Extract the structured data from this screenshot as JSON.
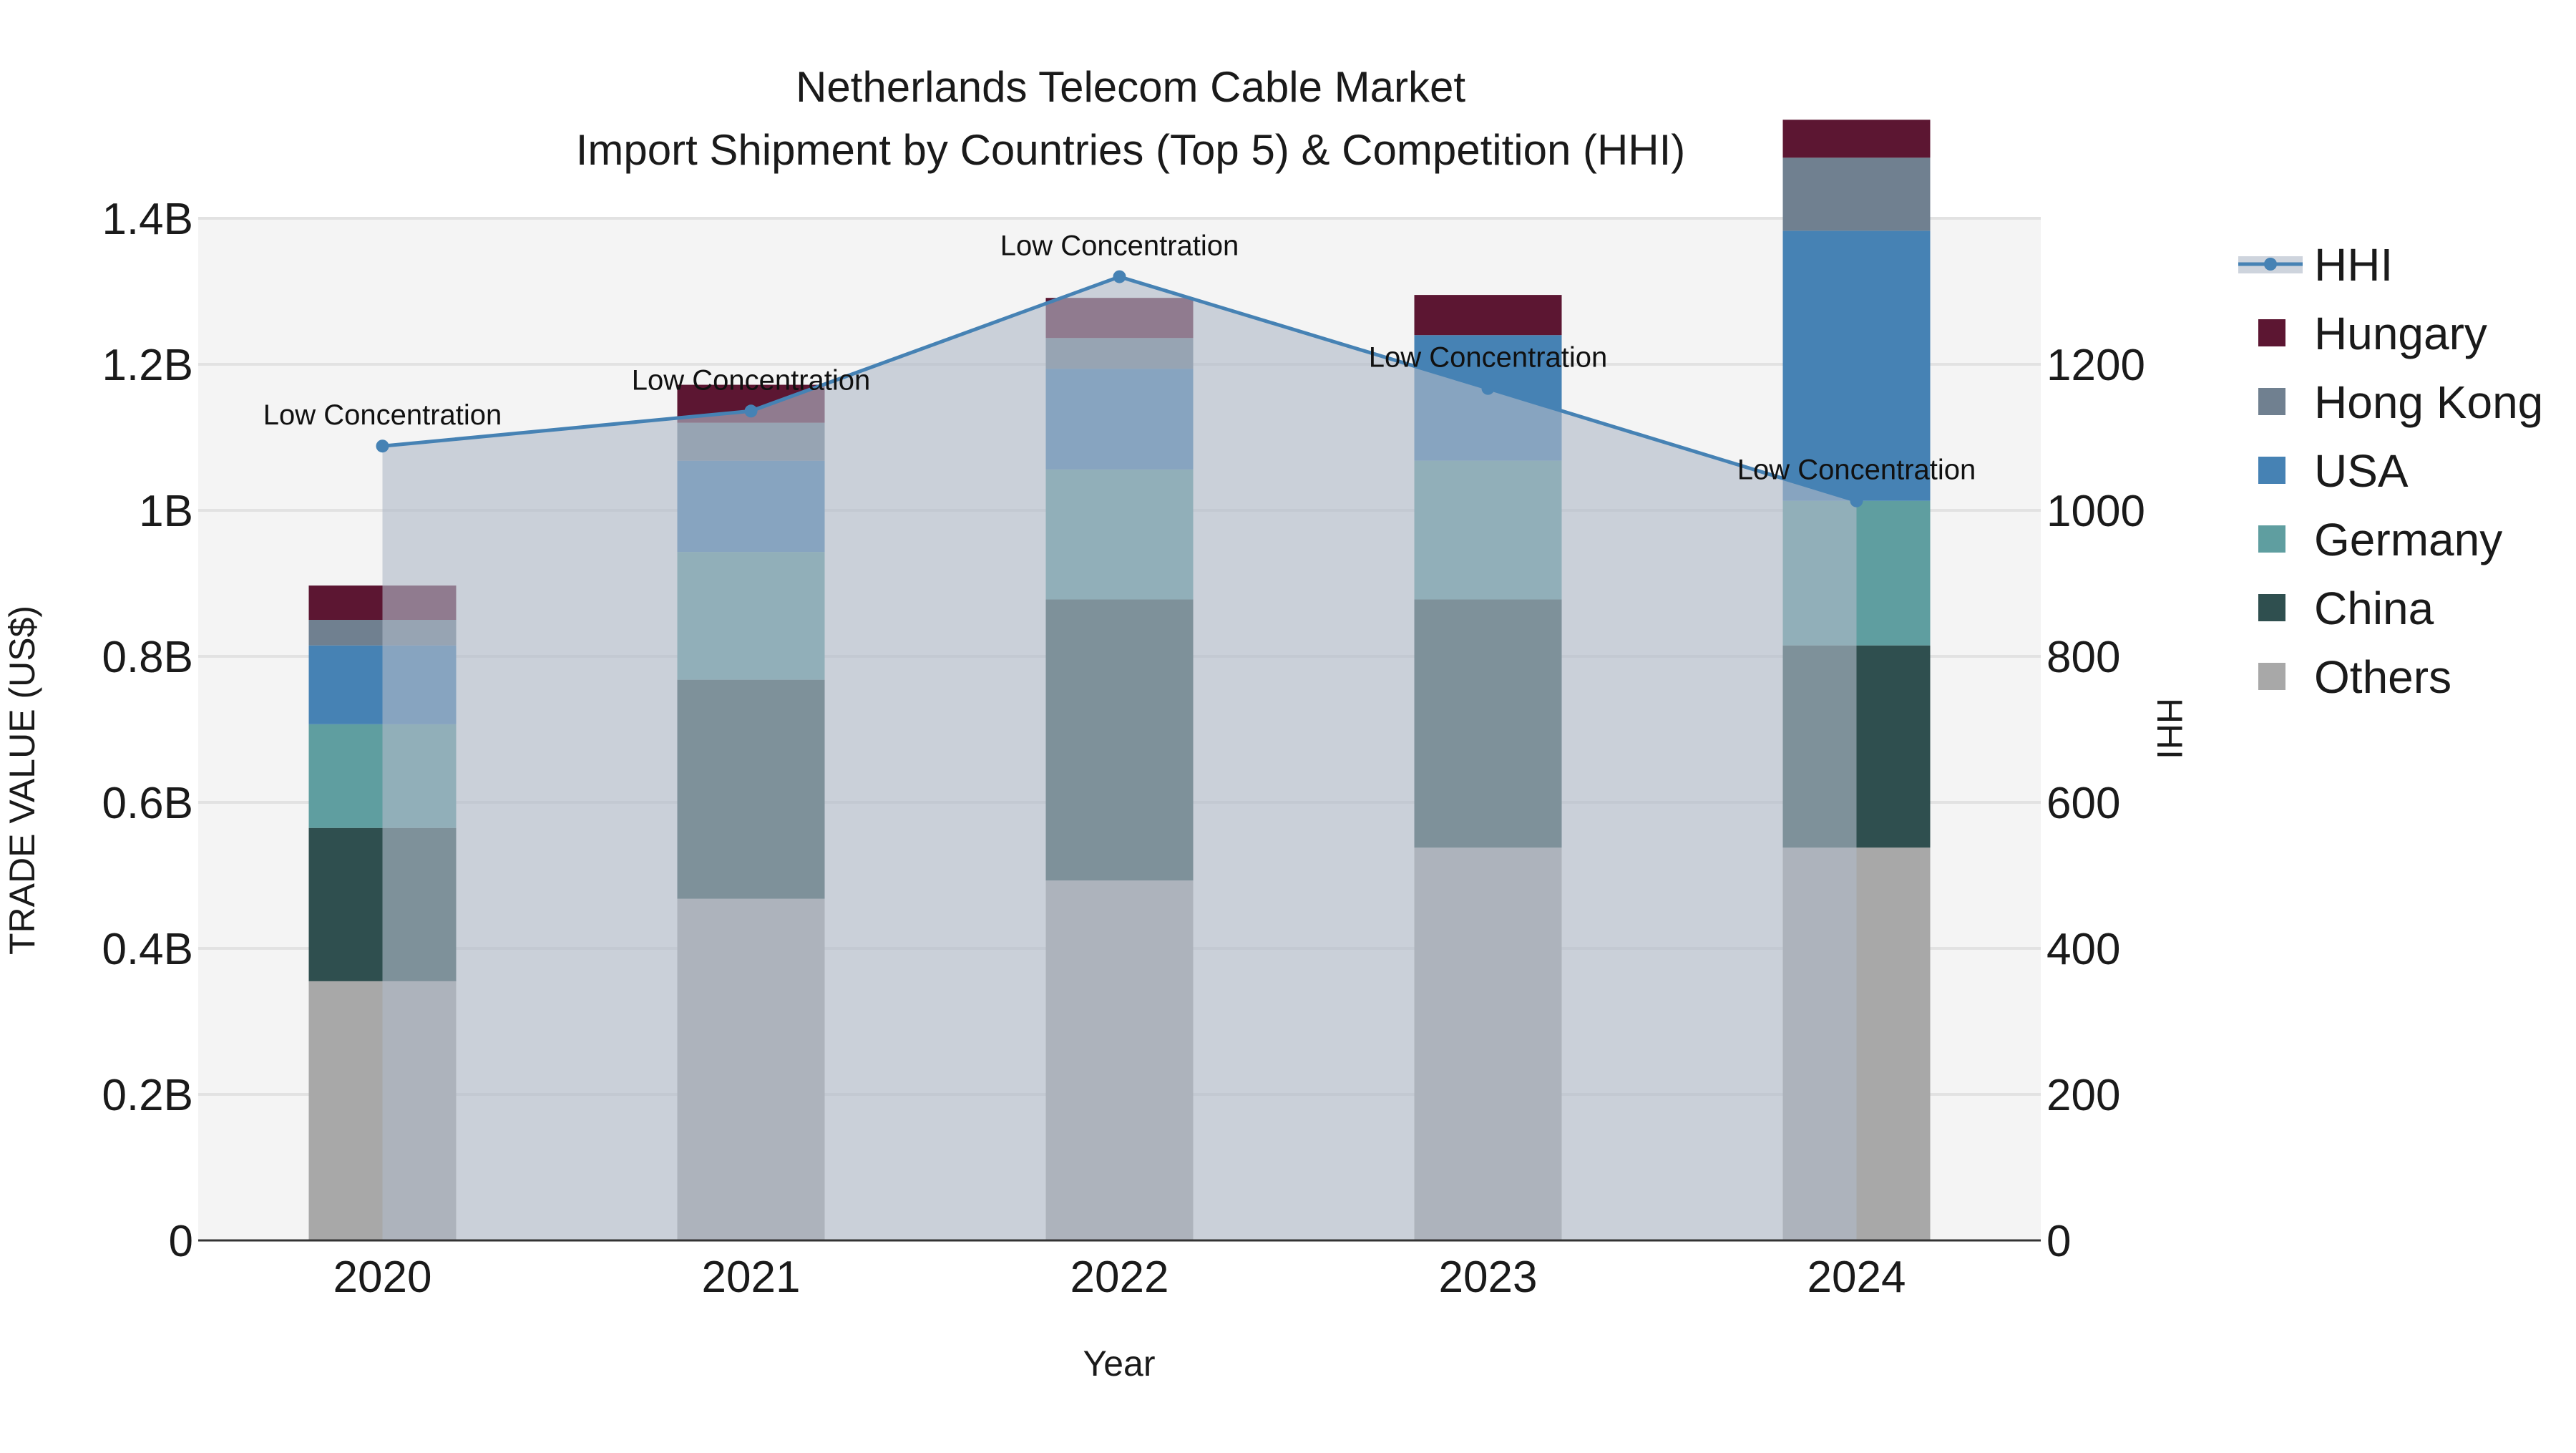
{
  "chart_data": {
    "type": "bar",
    "title_line1": "Netherlands Telecom Cable Market",
    "title_line2": "Import Shipment by Countries (Top 5) & Competition (HHI)",
    "xlabel": "Year",
    "ylabel": "TRADE VALUE (US$)",
    "y2label": "HHI",
    "categories": [
      "2020",
      "2021",
      "2022",
      "2023",
      "2024"
    ],
    "ylim": [
      0,
      1.4
    ],
    "yticks": [
      "0",
      "0.2B",
      "0.4B",
      "0.6B",
      "0.8B",
      "1B",
      "1.2B",
      "1.4B"
    ],
    "y2lim": [
      0,
      1400
    ],
    "y2ticks": [
      "0",
      "200",
      "400",
      "600",
      "800",
      "1000",
      "1200"
    ],
    "y2tick_values": [
      0,
      200,
      400,
      600,
      800,
      1000,
      1200
    ],
    "value_unit": "billion US$",
    "series": [
      {
        "name": "Others",
        "color": "#a8a8a8",
        "values": [
          0.355,
          0.468,
          0.493,
          0.538,
          0.538
        ]
      },
      {
        "name": "China",
        "color": "#2f4f4f",
        "values": [
          0.21,
          0.3,
          0.385,
          0.34,
          0.277
        ]
      },
      {
        "name": "Germany",
        "color": "#5f9ea0",
        "values": [
          0.142,
          0.175,
          0.178,
          0.19,
          0.198
        ]
      },
      {
        "name": "USA",
        "color": "#4682b4",
        "values": [
          0.108,
          0.125,
          0.138,
          0.172,
          0.37
        ]
      },
      {
        "name": "Hong Kong",
        "color": "#708090",
        "values": [
          0.035,
          0.052,
          0.042,
          0.0,
          0.1
        ]
      },
      {
        "name": "Hungary",
        "color": "#5c1632",
        "values": [
          0.047,
          0.052,
          0.055,
          0.055,
          0.052
        ]
      }
    ],
    "hhi": {
      "name": "HHI",
      "color": "#4682b4",
      "values": [
        1088,
        1136,
        1320,
        1167,
        1013
      ],
      "labels": [
        "Low Concentration",
        "Low Concentration",
        "Low Concentration",
        "Low Concentration",
        "Low Concentration"
      ]
    },
    "legend_order": [
      "HHI",
      "Hungary",
      "Hong Kong",
      "USA",
      "Germany",
      "China",
      "Others"
    ],
    "legend_position": "right",
    "grid": true
  }
}
